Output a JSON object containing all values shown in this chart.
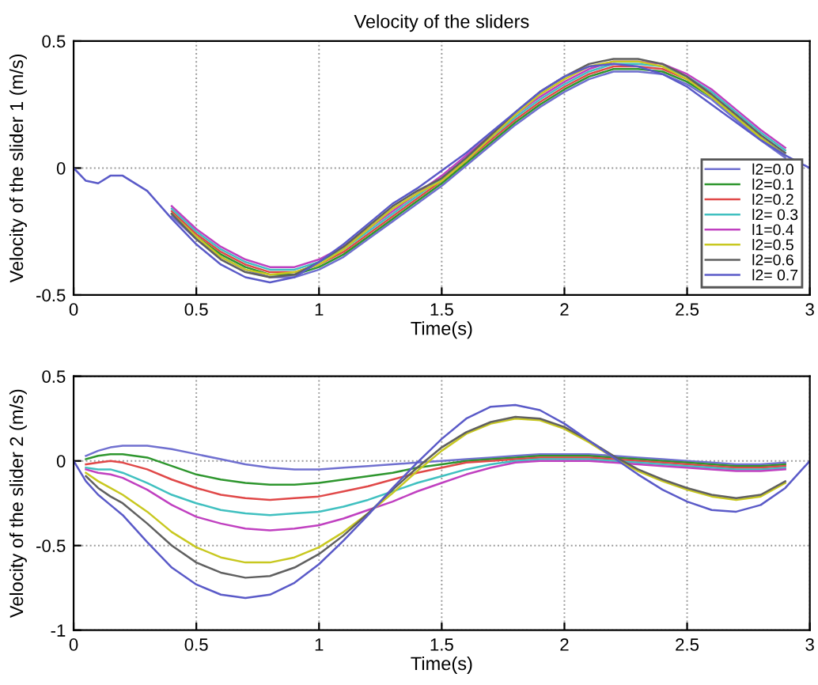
{
  "chart_data": [
    {
      "type": "line",
      "title": "Velocity of the sliders",
      "xlabel": "Time(s)",
      "ylabel": "Velocity of the slider 1 (m/s)",
      "x": [
        0,
        0.05,
        0.1,
        0.15,
        0.2,
        0.3,
        0.4,
        0.5,
        0.6,
        0.7,
        0.8,
        0.9,
        1.0,
        1.1,
        1.2,
        1.3,
        1.4,
        1.5,
        1.6,
        1.7,
        1.8,
        1.9,
        2.0,
        2.1,
        2.2,
        2.3,
        2.4,
        2.5,
        2.6,
        2.7,
        2.8,
        2.9,
        3.0
      ],
      "xlim": [
        0,
        3
      ],
      "xticks": [
        0,
        0.5,
        1,
        1.5,
        2,
        2.5,
        3
      ],
      "ylim": [
        -0.5,
        0.5
      ],
      "yticks": [
        -0.5,
        0,
        0.5
      ],
      "grid": true,
      "legend": "bottom right",
      "line_style": "solid",
      "series": [
        {
          "name": "l2=0.0",
          "color": "#7070d0",
          "values": [
            null,
            null,
            null,
            null,
            null,
            null,
            -0.19,
            -0.28,
            -0.35,
            -0.4,
            -0.43,
            -0.43,
            -0.4,
            -0.35,
            -0.28,
            -0.21,
            -0.14,
            -0.07,
            0.01,
            0.09,
            0.17,
            0.24,
            0.3,
            0.35,
            0.38,
            0.38,
            0.37,
            0.33,
            0.27,
            0.19,
            0.11,
            0.04,
            null
          ]
        },
        {
          "name": "l2=0.1",
          "color": "#2e962e",
          "values": [
            null,
            null,
            null,
            null,
            null,
            null,
            -0.18,
            -0.27,
            -0.34,
            -0.39,
            -0.42,
            -0.42,
            -0.39,
            -0.34,
            -0.27,
            -0.2,
            -0.13,
            -0.06,
            0.02,
            0.1,
            0.18,
            0.25,
            0.31,
            0.36,
            0.39,
            0.39,
            0.38,
            0.34,
            0.28,
            0.2,
            0.12,
            0.05,
            null
          ]
        },
        {
          "name": "l2=0.2",
          "color": "#e04848",
          "values": [
            null,
            null,
            null,
            null,
            null,
            null,
            -0.17,
            -0.26,
            -0.33,
            -0.38,
            -0.41,
            -0.41,
            -0.38,
            -0.33,
            -0.26,
            -0.19,
            -0.12,
            -0.05,
            0.03,
            0.11,
            0.19,
            0.26,
            0.32,
            0.37,
            0.4,
            0.4,
            0.39,
            0.35,
            0.29,
            null,
            null,
            null,
            null
          ]
        },
        {
          "name": "l2= 0.3",
          "color": "#40c0c0",
          "values": [
            null,
            null,
            null,
            null,
            null,
            null,
            -0.16,
            -0.25,
            -0.32,
            -0.37,
            -0.4,
            -0.4,
            -0.37,
            -0.32,
            -0.25,
            -0.18,
            -0.11,
            -0.04,
            0.04,
            0.12,
            0.2,
            0.27,
            0.33,
            0.38,
            0.41,
            0.41,
            0.4,
            0.36,
            0.3,
            0.22,
            0.14,
            0.07,
            null
          ]
        },
        {
          "name": "l1=0.4",
          "color": "#c040c0",
          "values": [
            null,
            null,
            null,
            null,
            null,
            null,
            -0.15,
            -0.24,
            -0.31,
            -0.36,
            -0.39,
            -0.39,
            -0.36,
            -0.31,
            -0.24,
            -0.17,
            -0.1,
            -0.03,
            0.05,
            0.13,
            0.21,
            0.28,
            0.34,
            0.39,
            0.42,
            0.42,
            0.41,
            0.37,
            0.31,
            0.23,
            0.15,
            0.08,
            null
          ]
        },
        {
          "name": "l2=0.5",
          "color": "#c8c820",
          "values": [
            null,
            null,
            null,
            null,
            null,
            null,
            -0.18,
            -0.27,
            -0.35,
            -0.4,
            -0.42,
            -0.41,
            -0.38,
            -0.32,
            -0.24,
            -0.16,
            -0.1,
            -0.05,
            0.03,
            0.12,
            0.21,
            0.29,
            0.35,
            0.4,
            0.42,
            0.42,
            0.4,
            0.35,
            0.28,
            0.2,
            0.12,
            0.05,
            null
          ]
        },
        {
          "name": "l2=0.6",
          "color": "#606060",
          "values": [
            null,
            null,
            null,
            null,
            null,
            null,
            -0.18,
            -0.28,
            -0.36,
            -0.41,
            -0.43,
            -0.42,
            -0.37,
            -0.31,
            -0.23,
            -0.15,
            -0.09,
            -0.04,
            0.04,
            0.13,
            0.22,
            0.3,
            0.36,
            0.41,
            0.43,
            0.43,
            0.41,
            0.36,
            0.29,
            0.21,
            0.13,
            0.06,
            null
          ]
        },
        {
          "name": "l2= 0.7",
          "color": "#5a5ac8",
          "values": [
            0,
            -0.05,
            -0.06,
            -0.03,
            -0.03,
            -0.09,
            -0.2,
            -0.3,
            -0.38,
            -0.43,
            -0.45,
            -0.43,
            -0.37,
            -0.3,
            -0.22,
            -0.14,
            -0.08,
            -0.01,
            0.06,
            0.14,
            0.22,
            0.3,
            0.36,
            0.4,
            0.41,
            0.4,
            0.37,
            0.32,
            0.25,
            0.18,
            0.11,
            0.05,
            0
          ]
        }
      ]
    },
    {
      "type": "line",
      "xlabel": "Time(s)",
      "ylabel": "Velocity of the slider 2 (m/s)",
      "x": [
        0,
        0.05,
        0.1,
        0.15,
        0.2,
        0.3,
        0.4,
        0.5,
        0.6,
        0.7,
        0.8,
        0.9,
        1.0,
        1.1,
        1.2,
        1.3,
        1.4,
        1.5,
        1.6,
        1.7,
        1.8,
        1.9,
        2.0,
        2.1,
        2.2,
        2.3,
        2.4,
        2.5,
        2.6,
        2.7,
        2.8,
        2.9,
        3.0
      ],
      "xlim": [
        0,
        3
      ],
      "xticks": [
        0,
        0.5,
        1,
        1.5,
        2,
        2.5,
        3
      ],
      "ylim": [
        -1,
        0.5
      ],
      "yticks": [
        -1,
        -0.5,
        0,
        0.5
      ],
      "grid": true,
      "line_style": "solid",
      "series": [
        {
          "color": "#7070d0",
          "values": [
            null,
            0.03,
            0.06,
            0.08,
            0.09,
            0.09,
            0.07,
            0.04,
            0.01,
            -0.02,
            -0.04,
            -0.05,
            -0.05,
            -0.04,
            -0.03,
            -0.02,
            -0.01,
            0.0,
            0.01,
            0.02,
            0.03,
            0.04,
            0.04,
            0.04,
            0.03,
            0.02,
            0.01,
            0.0,
            -0.01,
            -0.02,
            -0.02,
            -0.01,
            null
          ]
        },
        {
          "color": "#2e962e",
          "values": [
            null,
            0.01,
            0.03,
            0.04,
            0.04,
            0.02,
            -0.03,
            -0.08,
            -0.11,
            -0.13,
            -0.14,
            -0.14,
            -0.13,
            -0.11,
            -0.09,
            -0.07,
            -0.04,
            -0.02,
            0.0,
            0.01,
            0.02,
            0.03,
            0.03,
            0.03,
            0.02,
            0.01,
            0.0,
            -0.01,
            -0.02,
            -0.03,
            -0.03,
            -0.02,
            null
          ]
        },
        {
          "color": "#e04848",
          "values": [
            null,
            -0.02,
            -0.01,
            0.0,
            -0.01,
            -0.05,
            -0.11,
            -0.16,
            -0.2,
            -0.22,
            -0.23,
            -0.22,
            -0.21,
            -0.18,
            -0.15,
            -0.11,
            -0.07,
            -0.04,
            -0.01,
            0.0,
            0.01,
            0.02,
            0.02,
            0.02,
            0.01,
            0.0,
            -0.01,
            -0.02,
            -0.03,
            -0.04,
            -0.04,
            -0.03,
            null
          ]
        },
        {
          "color": "#40c0c0",
          "values": [
            null,
            -0.04,
            -0.05,
            -0.05,
            -0.07,
            -0.13,
            -0.2,
            -0.25,
            -0.29,
            -0.31,
            -0.32,
            -0.31,
            -0.3,
            -0.27,
            -0.23,
            -0.18,
            -0.13,
            -0.09,
            -0.05,
            -0.02,
            0.0,
            0.01,
            0.01,
            0.01,
            0.0,
            -0.01,
            -0.02,
            -0.03,
            -0.04,
            -0.05,
            -0.05,
            -0.04,
            null
          ]
        },
        {
          "color": "#c040c0",
          "values": [
            null,
            -0.05,
            -0.07,
            -0.08,
            -0.1,
            -0.17,
            -0.26,
            -0.33,
            -0.37,
            -0.4,
            -0.41,
            -0.4,
            -0.38,
            -0.34,
            -0.29,
            -0.24,
            -0.18,
            -0.13,
            -0.08,
            -0.04,
            -0.01,
            0.0,
            0.0,
            0.0,
            -0.01,
            -0.02,
            -0.03,
            -0.04,
            -0.05,
            -0.06,
            -0.06,
            -0.05,
            null
          ]
        },
        {
          "color": "#c8c820",
          "values": [
            null,
            -0.07,
            -0.12,
            -0.16,
            -0.2,
            -0.3,
            -0.42,
            -0.51,
            -0.57,
            -0.6,
            -0.6,
            -0.57,
            -0.51,
            -0.42,
            -0.31,
            -0.19,
            -0.06,
            0.06,
            0.16,
            0.22,
            0.25,
            0.24,
            0.19,
            0.11,
            0.02,
            -0.06,
            -0.12,
            -0.17,
            -0.21,
            -0.23,
            -0.21,
            -0.13,
            null
          ]
        },
        {
          "color": "#606060",
          "values": [
            null,
            -0.09,
            -0.16,
            -0.21,
            -0.25,
            -0.37,
            -0.5,
            -0.6,
            -0.66,
            -0.69,
            -0.68,
            -0.63,
            -0.55,
            -0.44,
            -0.31,
            -0.17,
            -0.04,
            0.08,
            0.17,
            0.23,
            0.26,
            0.25,
            0.2,
            0.12,
            0.03,
            -0.05,
            -0.11,
            -0.16,
            -0.2,
            -0.22,
            -0.2,
            -0.12,
            null
          ]
        },
        {
          "color": "#5a5ac8",
          "values": [
            0,
            -0.12,
            -0.2,
            -0.26,
            -0.32,
            -0.48,
            -0.63,
            -0.73,
            -0.79,
            -0.81,
            -0.79,
            -0.72,
            -0.61,
            -0.47,
            -0.32,
            -0.16,
            -0.01,
            0.13,
            0.25,
            0.32,
            0.33,
            0.3,
            0.22,
            0.12,
            0.02,
            -0.08,
            -0.17,
            -0.24,
            -0.29,
            -0.3,
            -0.26,
            -0.16,
            0
          ]
        }
      ]
    }
  ]
}
